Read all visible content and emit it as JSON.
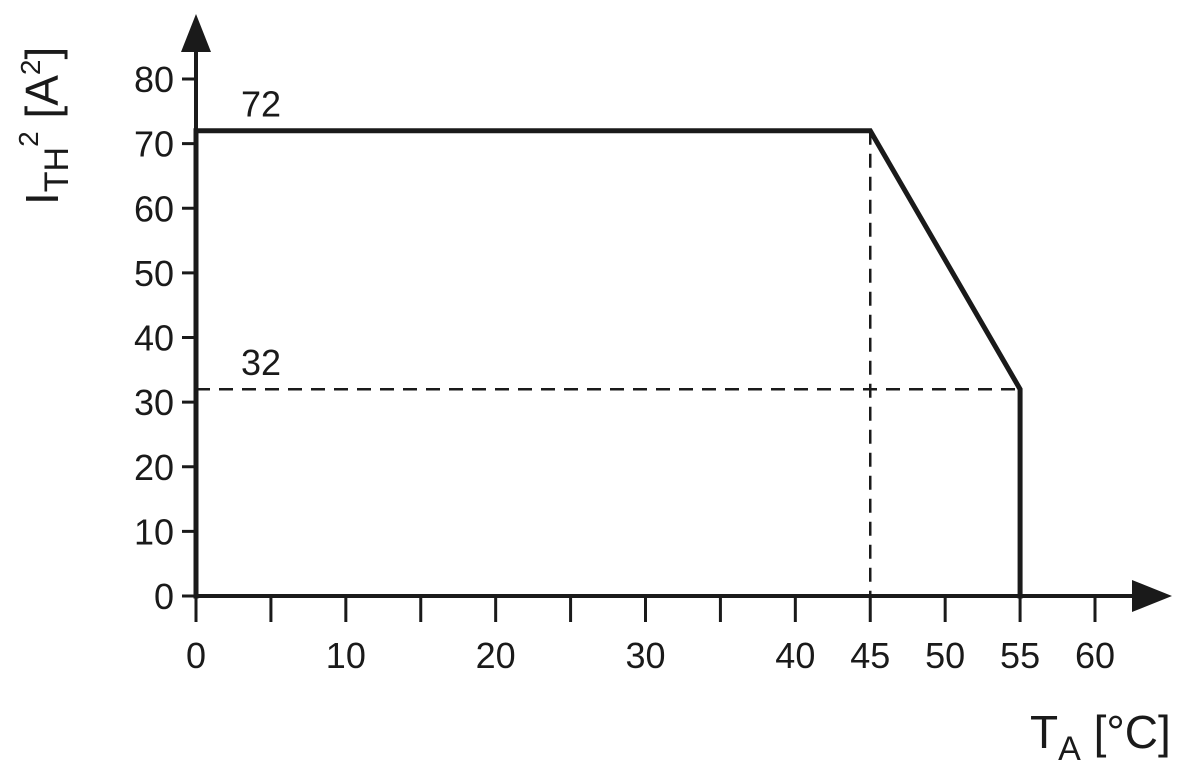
{
  "chart_data": {
    "type": "line",
    "title": "",
    "xlabel": {
      "main": "T",
      "sub": "A",
      "unit": " [°C]"
    },
    "ylabel": {
      "main": "I",
      "sub": "TH",
      "sup": "2",
      "unit": " [A",
      "unit_sup": "2",
      "unit_end": "]"
    },
    "xlim": [
      0,
      60
    ],
    "ylim": [
      0,
      80
    ],
    "x_ticks": [
      0,
      5,
      10,
      15,
      20,
      25,
      30,
      35,
      40,
      45,
      50,
      55,
      60
    ],
    "x_tick_labels": [
      "0",
      "10",
      "20",
      "30",
      "40",
      "45",
      "50",
      "55",
      "60"
    ],
    "x_tick_label_values": [
      0,
      10,
      20,
      30,
      40,
      45,
      50,
      55,
      60
    ],
    "y_ticks": [
      0,
      10,
      20,
      30,
      40,
      50,
      60,
      70,
      80
    ],
    "y_tick_labels": [
      "0",
      "10",
      "20",
      "30",
      "40",
      "50",
      "60",
      "70",
      "80"
    ],
    "series": [
      {
        "x": [
          0,
          0,
          45,
          55,
          55
        ],
        "y": [
          0,
          72,
          72,
          32,
          0
        ]
      }
    ],
    "reference_lines": [
      {
        "x": [
          0,
          55
        ],
        "y": [
          32,
          32
        ]
      },
      {
        "x": [
          45,
          45
        ],
        "y": [
          72,
          0
        ]
      }
    ],
    "annotations": [
      {
        "text": "72",
        "x": 3,
        "y": 72
      },
      {
        "text": "32",
        "x": 3,
        "y": 32
      }
    ],
    "grid": false,
    "legend": "none",
    "line_color": "#1a1a1a"
  }
}
